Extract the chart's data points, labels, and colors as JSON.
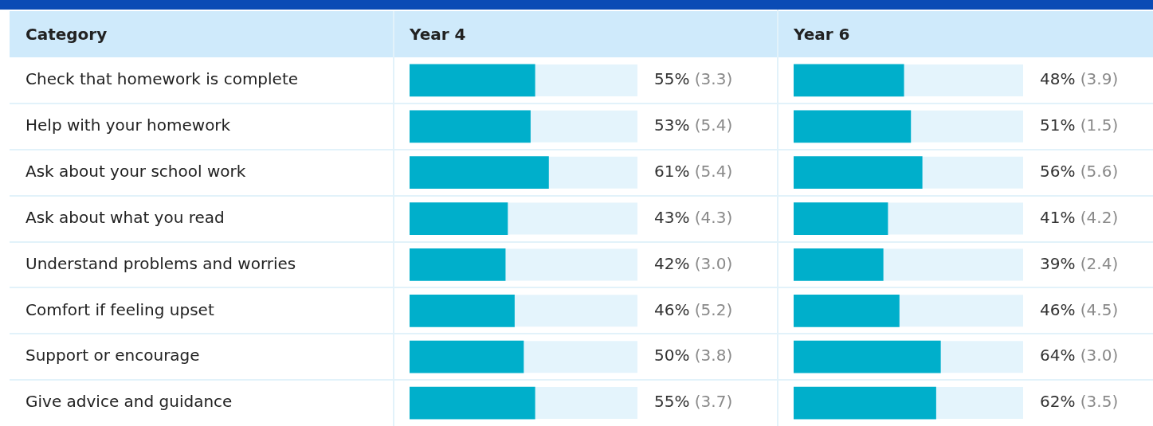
{
  "chart_data": [
    {
      "type": "bar",
      "orientation": "horizontal",
      "title": "Year 4",
      "ylabel": "Category",
      "categories": [
        "Check that homework is complete",
        "Help with your homework",
        "Ask about your school work",
        "Ask about what you read",
        "Understand problems and worries",
        "Comfort if feeling upset",
        "Support or encourage",
        "Give advice and guidance"
      ],
      "values": [
        55,
        53,
        61,
        43,
        42,
        46,
        50,
        55
      ],
      "color": "#00afcb",
      "value_labels": [
        "55% (3.3)",
        "53% (5.4)",
        "61% (5.4)",
        "43% (4.3)",
        "42% (3.0)",
        "46% (5.2)",
        "50% (3.8)",
        "55% (3.7)"
      ],
      "xlim": [
        0,
        100
      ],
      "tick_labels": "y",
      "legend": false,
      "grid": false
    },
    {
      "type": "bar",
      "orientation": "horizontal",
      "title": "Year 6",
      "categories": [
        null,
        null,
        null,
        null,
        null,
        null,
        null,
        null
      ],
      "values": [
        48,
        51,
        56,
        41,
        39,
        46,
        64,
        62
      ],
      "color": "#00afcb",
      "value_labels": [
        "48% (3.9)",
        "51% (1.5)",
        "56% (5.6)",
        "41% (4.2)",
        "39% (2.4)",
        "46% (4.5)",
        "64% (3.0)",
        "62% (3.5)"
      ],
      "xlim": [
        0,
        100
      ],
      "tick_labels": false,
      "legend": false,
      "grid": false
    }
  ]
}
